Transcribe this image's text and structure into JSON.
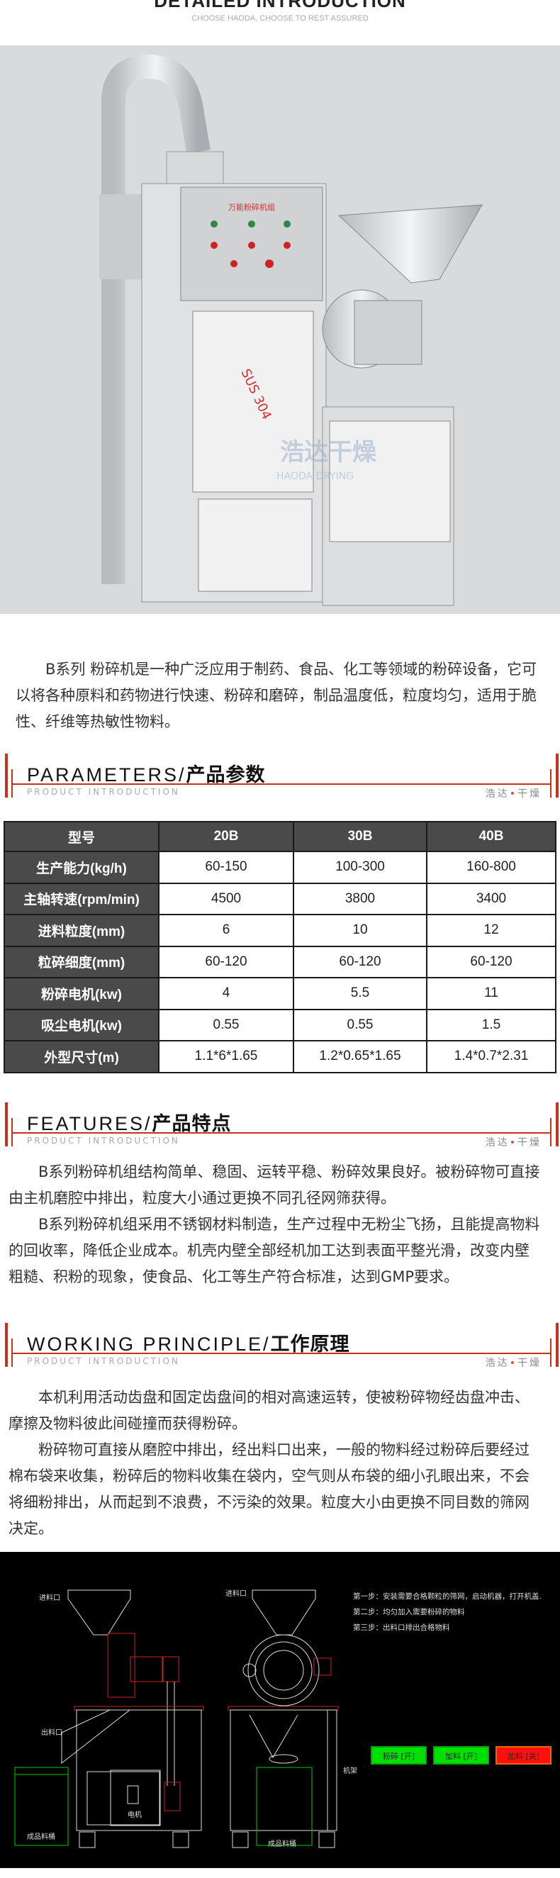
{
  "header": {
    "title": "DETAILED INTRODUCTION",
    "subtitle": "CHOOSE HAODA, CHOOSE TO REST ASSURED"
  },
  "photo": {
    "panel_label": "万能粉碎机组",
    "plate_text": "SUS 304",
    "watermark_cn": "浩达干燥",
    "watermark_en": "HAODA DRYING"
  },
  "intro": "B系列 粉碎机是一种广泛应用于制药、食品、化工等领域的粉碎设备，它可以将各种原料和药物进行快速、粉碎和磨碎，制品温度低，粒度均匀，适用于脆性、纤维等热敏性物料。",
  "brand": {
    "left": "浩达",
    "dot": "•",
    "right": "干燥",
    "sub": "PRODUCT INTRODUCTION"
  },
  "parameters": {
    "title_en": "PARAMETERS/",
    "title_cn": "产品参数",
    "header": [
      "型号",
      "20B",
      "30B",
      "40B"
    ],
    "rows": [
      [
        "生产能力(kg/h)",
        "60-150",
        "100-300",
        "160-800"
      ],
      [
        "主轴转速(rpm/min)",
        "4500",
        "3800",
        "3400"
      ],
      [
        "进料粒度(mm)",
        "6",
        "10",
        "12"
      ],
      [
        "粒碎细度(mm)",
        "60-120",
        "60-120",
        "60-120"
      ],
      [
        "粉碎电机(kw)",
        "4",
        "5.5",
        "11"
      ],
      [
        "吸尘电机(kw)",
        "0.55",
        "0.55",
        "1.5"
      ],
      [
        "外型尺寸(m)",
        "1.1*6*1.65",
        "1.2*0.65*1.65",
        "1.4*0.7*2.31"
      ]
    ]
  },
  "features": {
    "title_en": "FEATURES/",
    "title_cn": "产品特点",
    "paragraphs": [
      "B系列粉碎机组结构简单、稳固、运转平稳、粉碎效果良好。被粉碎物可直接由主机磨腔中排出，粒度大小通过更换不同孔径网筛获得。",
      "B系列粉碎机组采用不锈钢材料制造，生产过程中无粉尘飞扬，且能提高物料的回收率，降低企业成本。机壳内壁全部经机加工达到表面平整光滑，改变内壁粗糙、积粉的现象，使食品、化工等生产符合标准，达到GMP要求。"
    ]
  },
  "principle": {
    "title_en": "WORKING PRINCIPLE/",
    "title_cn": "工作原理",
    "paragraphs": [
      "本机利用活动齿盘和固定齿盘间的相对高速运转，使被粉碎物经齿盘冲击、摩擦及物料彼此间碰撞而获得粉碎。",
      "粉碎物可直接从磨腔中排出，经出料口出来，一般的物料经过粉碎后要经过棉布袋来收集，粉碎后的物料收集在袋内，空气则从布袋的细小孔眼出来，不会将细粉排出，从而起到不浪费，不污染的效果。粒度大小由更换不同目数的筛网决定。"
    ]
  },
  "diagram": {
    "labels": {
      "inlet": "进料口",
      "inlet2": "进料口",
      "outlet": "出料口",
      "motor": "电机",
      "bin": "成品料桶",
      "bin2": "成品料桶",
      "frame": "机架"
    },
    "steps": [
      "第一步：安装需要合格颗粒的筛网，启动机器，打开机盖.",
      "第二步：均匀加入需要粉碎的物料",
      "第三步：出料口排出合格物料"
    ],
    "buttons": [
      {
        "label": "粉碎 [开]",
        "color": "#00e000"
      },
      {
        "label": "加料 [开]",
        "color": "#00e000"
      },
      {
        "label": "加料 [关]",
        "color": "#ff1010"
      }
    ]
  },
  "colors": {
    "accent": "#c8311c",
    "table_header": "#4a4a4a"
  }
}
